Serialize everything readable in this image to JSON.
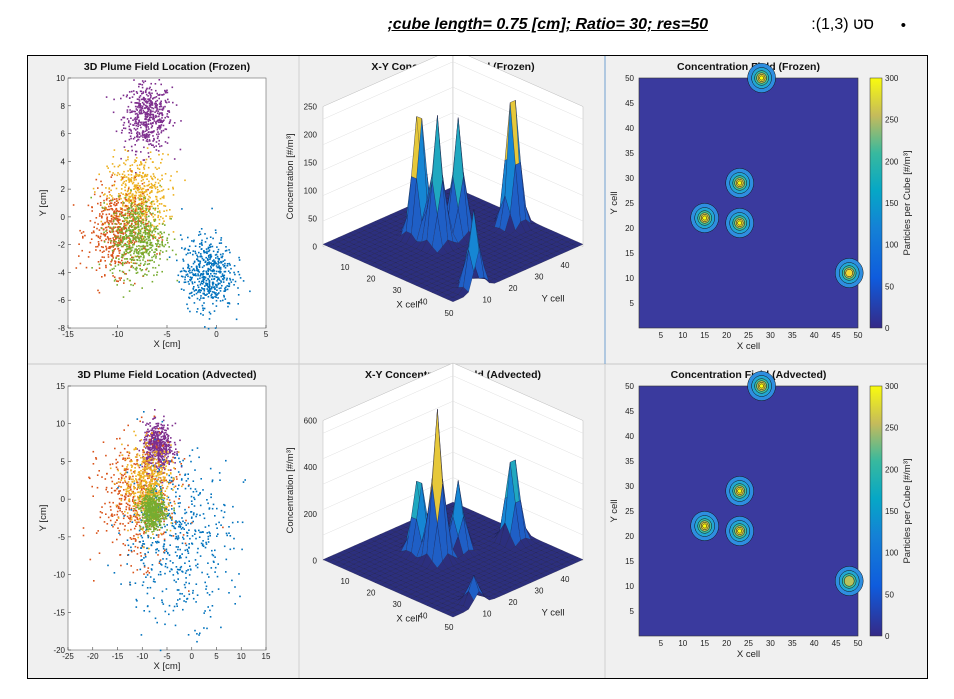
{
  "caption": {
    "bullet": "•",
    "set_label": "סט (1,3):",
    "params": ";cube length= 0.75 [cm]; Ratio= 30; res=50"
  },
  "colors": {
    "purple": "#7e2f8e",
    "yellow": "#edb120",
    "orange": "#d95319",
    "green": "#77ac30",
    "blue": "#0072bd",
    "field_bg": "#3a3a9e",
    "panel_bg": "#f0f0f0"
  },
  "panels": [
    {
      "id": "p11",
      "type": "scatter",
      "title": "3D Plume Field Location (Frozen)",
      "xlabel": "X [cm]",
      "ylabel": "Y [cm]",
      "xlim": [
        -15,
        5
      ],
      "ylim": [
        -8,
        10
      ],
      "xticks": [
        "-15",
        "-10",
        "-5",
        "0",
        "5"
      ],
      "yticks": [
        "10",
        "8",
        "6",
        "4",
        "2",
        "0",
        "-2",
        "-4",
        "-6",
        "-8"
      ]
    },
    {
      "id": "p12",
      "type": "surface",
      "title": "X-Y Concentration Field (Frozen)",
      "xlabel": "X cell",
      "ylabel": "Y cell",
      "zlabel": "Concentration [#/m³]",
      "zticks": [
        "0",
        "50",
        "100",
        "150",
        "200",
        "250"
      ],
      "xticks": [
        "10",
        "20",
        "30",
        "40",
        "50"
      ],
      "yticks": [
        "10",
        "20",
        "30",
        "40"
      ]
    },
    {
      "id": "p13",
      "type": "contour",
      "title": "Concentration Field (Frozen)",
      "xlabel": "X cell",
      "ylabel": "Y cell",
      "cbar_label": "Particles per Cube [#/m³]",
      "xticks": [
        "5",
        "10",
        "15",
        "20",
        "25",
        "30",
        "35",
        "40",
        "45",
        "50"
      ],
      "yticks": [
        "50",
        "45",
        "40",
        "35",
        "30",
        "25",
        "20",
        "15",
        "10",
        "5"
      ],
      "cbar_ticks": [
        "300",
        "250",
        "200",
        "150",
        "100",
        "50",
        "0"
      ]
    },
    {
      "id": "p21",
      "type": "scatter",
      "title": "3D Plume Field Location (Advected)",
      "xlabel": "X [cm]",
      "ylabel": "Y [cm]",
      "xlim": [
        -25,
        15
      ],
      "ylim": [
        -20,
        15
      ],
      "xticks": [
        "-25",
        "-20",
        "-15",
        "-10",
        "-5",
        "0",
        "5",
        "10",
        "15"
      ],
      "yticks": [
        "15",
        "10",
        "5",
        "0",
        "-5",
        "-10",
        "-15",
        "-20"
      ]
    },
    {
      "id": "p22",
      "type": "surface",
      "title": "X-Y Concentration Field (Advected)",
      "xlabel": "X cell",
      "ylabel": "Y cell",
      "zlabel": "Concentration [#/m³]",
      "zticks": [
        "0",
        "200",
        "400",
        "600"
      ],
      "xticks": [
        "10",
        "20",
        "30",
        "40",
        "50"
      ],
      "yticks": [
        "10",
        "20",
        "30",
        "40"
      ]
    },
    {
      "id": "p23",
      "type": "contour",
      "title": "Concentration Field (Advected)",
      "xlabel": "X cell",
      "ylabel": "Y cell",
      "cbar_label": "Particles per Cube [#/m³]",
      "xticks": [
        "5",
        "10",
        "15",
        "20",
        "25",
        "30",
        "35",
        "40",
        "45",
        "50"
      ],
      "yticks": [
        "50",
        "45",
        "40",
        "35",
        "30",
        "25",
        "20",
        "15",
        "10",
        "5"
      ],
      "cbar_ticks": [
        "300",
        "250",
        "200",
        "150",
        "100",
        "50",
        "0"
      ]
    }
  ],
  "chart_data": [
    {
      "type": "scatter",
      "title": "3D Plume Field Location (Frozen)",
      "xlabel": "X [cm]",
      "ylabel": "Y [cm]",
      "xlim": [
        -15,
        5
      ],
      "ylim": [
        -8,
        10
      ],
      "series": [
        {
          "color": "#7e2f8e",
          "center": [
            -7,
            7.3
          ],
          "spread": [
            1.2,
            1.2
          ]
        },
        {
          "color": "#edb120",
          "center": [
            -8,
            1.5
          ],
          "spread": [
            1.5,
            1.5
          ]
        },
        {
          "color": "#d95319",
          "center": [
            -10,
            -1
          ],
          "spread": [
            1.5,
            1.5
          ]
        },
        {
          "color": "#77ac30",
          "center": [
            -8,
            -1.5
          ],
          "spread": [
            1.4,
            1.4
          ]
        },
        {
          "color": "#0072bd",
          "center": [
            -1,
            -4
          ],
          "spread": [
            1.3,
            1.3
          ]
        }
      ]
    },
    {
      "type": "surface",
      "title": "X-Y Concentration Field (Frozen)",
      "zlim": [
        0,
        250
      ],
      "peaks": [
        {
          "x": 15,
          "y": 22,
          "z": 250
        },
        {
          "x": 22,
          "y": 22,
          "z": 230
        },
        {
          "x": 22,
          "y": 30,
          "z": 210
        },
        {
          "x": 28,
          "y": 45,
          "z": 260
        },
        {
          "x": 48,
          "y": 10,
          "z": 140
        }
      ]
    },
    {
      "type": "contour",
      "title": "Concentration Field (Frozen)",
      "xlim": [
        0,
        50
      ],
      "ylim": [
        0,
        50
      ],
      "clim": [
        0,
        300
      ],
      "peaks": [
        {
          "x": 15,
          "y": 22,
          "z": 300
        },
        {
          "x": 23,
          "y": 21,
          "z": 300
        },
        {
          "x": 23,
          "y": 29,
          "z": 280
        },
        {
          "x": 28,
          "y": 50,
          "z": 300
        },
        {
          "x": 48,
          "y": 11,
          "z": 260
        }
      ]
    },
    {
      "type": "scatter",
      "title": "3D Plume Field Location (Advected)",
      "xlabel": "X [cm]",
      "ylabel": "Y [cm]",
      "xlim": [
        -25,
        15
      ],
      "ylim": [
        -20,
        15
      ],
      "series": [
        {
          "color": "#7e2f8e",
          "center": [
            -7,
            7
          ],
          "spread": [
            1.5,
            1.5
          ]
        },
        {
          "color": "#d95319",
          "center": [
            -11,
            0
          ],
          "spread": [
            4,
            4
          ]
        },
        {
          "color": "#0072bd",
          "center": [
            -3,
            -5
          ],
          "spread": [
            5.5,
            5.5
          ]
        },
        {
          "color": "#edb120",
          "center": [
            -9,
            2
          ],
          "spread": [
            2.5,
            2.5
          ]
        },
        {
          "color": "#77ac30",
          "center": [
            -8,
            -1.5
          ],
          "spread": [
            1.2,
            1.2
          ]
        }
      ]
    },
    {
      "type": "surface",
      "title": "X-Y Concentration Field (Advected)",
      "zlim": [
        0,
        600
      ],
      "peaks": [
        {
          "x": 15,
          "y": 22,
          "z": 350
        },
        {
          "x": 22,
          "y": 22,
          "z": 650
        },
        {
          "x": 22,
          "y": 30,
          "z": 300
        },
        {
          "x": 28,
          "y": 45,
          "z": 400
        },
        {
          "x": 48,
          "y": 10,
          "z": 120
        }
      ]
    },
    {
      "type": "contour",
      "title": "Concentration Field (Advected)",
      "xlim": [
        0,
        50
      ],
      "ylim": [
        0,
        50
      ],
      "clim": [
        0,
        300
      ],
      "peaks": [
        {
          "x": 15,
          "y": 22,
          "z": 300
        },
        {
          "x": 23,
          "y": 21,
          "z": 300
        },
        {
          "x": 23,
          "y": 29,
          "z": 280
        },
        {
          "x": 28,
          "y": 50,
          "z": 300
        },
        {
          "x": 48,
          "y": 11,
          "z": 200
        }
      ]
    }
  ]
}
